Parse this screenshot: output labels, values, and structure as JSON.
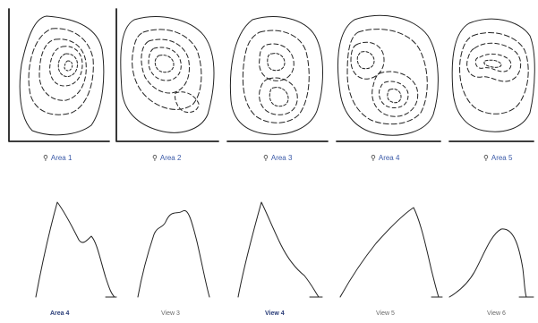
{
  "panels_top": [
    {
      "caption": "Area 1"
    },
    {
      "caption": "Area 2"
    },
    {
      "caption": "Area 3"
    },
    {
      "caption": "Area 4"
    },
    {
      "caption": "Area 5"
    }
  ],
  "panels_bottom": [
    {
      "caption": "Area 4"
    },
    {
      "caption": "View 3"
    },
    {
      "caption": "View 4"
    },
    {
      "caption": "View 5"
    },
    {
      "caption": "View 6"
    }
  ],
  "icons": {
    "caption_marker": "pin-icon",
    "caption_marker_glyph": "⚲"
  },
  "colors": {
    "line": "#222222",
    "caption": "#3b5aa8",
    "caption_dark": "#2a3d78",
    "caption_grey": "#6a6a6a"
  }
}
